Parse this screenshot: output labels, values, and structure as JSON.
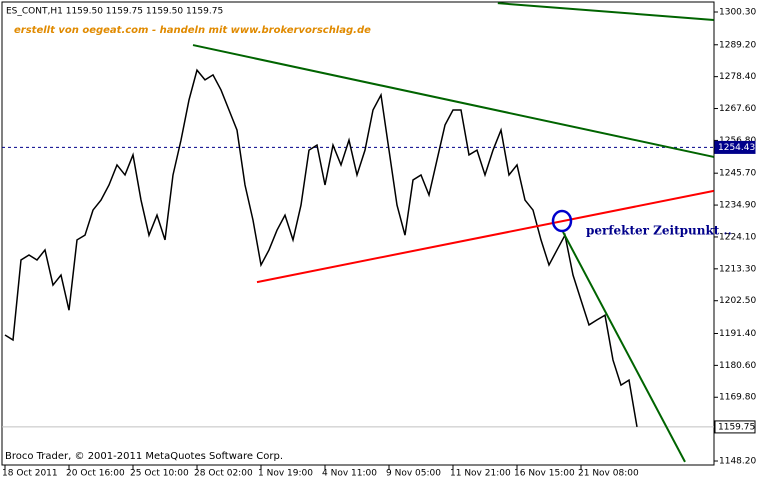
{
  "chart_data": {
    "type": "line",
    "header": "ES_CONT,H1  1159.50 1159.75 1159.50 1159.75",
    "subtitle": "erstellt von oegeat.com - handeln mit www.brokervorschlag.de",
    "annotation": "perfekter Zeitpunkt ..",
    "footer": "Broco Trader, © 2001-2011 MetaQuotes Software Corp.",
    "categories": [
      "18 Oct 2011",
      null,
      null,
      null,
      null,
      null,
      null,
      null,
      "20 Oct 16:00",
      null,
      null,
      null,
      null,
      null,
      null,
      null,
      "25 Oct 10:00",
      null,
      null,
      null,
      null,
      null,
      null,
      null,
      "28 Oct 02:00",
      null,
      null,
      null,
      null,
      null,
      null,
      null,
      "1 Nov 19:00",
      null,
      null,
      null,
      null,
      null,
      null,
      null,
      "4 Nov 11:00",
      null,
      null,
      null,
      null,
      null,
      null,
      null,
      "9 Nov 05:00",
      null,
      null,
      null,
      null,
      null,
      null,
      null,
      "11 Nov 21:00",
      null,
      null,
      null,
      null,
      null,
      null,
      null,
      "16 Nov 15:00",
      null,
      null,
      null,
      null,
      null,
      null,
      null,
      "21 Nov 08:00",
      null,
      null,
      null,
      null,
      null,
      null,
      null
    ],
    "series": [
      {
        "name": "ES_CONT",
        "color": "#000000",
        "values": [
          1190.9,
          1189.2,
          1216.3,
          1218.0,
          1216.3,
          1219.7,
          1207.8,
          1211.2,
          1199.3,
          1223.1,
          1224.7,
          1233.2,
          1236.6,
          1241.7,
          1248.5,
          1245.1,
          1251.9,
          1236.6,
          1224.7,
          1231.5,
          1223.1,
          1245.1,
          1256.9,
          1270.5,
          1280.6,
          1277.3,
          1279.0,
          1273.9,
          1267.1,
          1260.3,
          1241.7,
          1229.8,
          1214.6,
          1219.7,
          1226.4,
          1231.5,
          1223.1,
          1234.9,
          1253.5,
          1255.2,
          1241.7,
          1255.2,
          1248.5,
          1256.9,
          1245.1,
          1253.5,
          1267.1,
          1272.2,
          1253.5,
          1234.9,
          1224.7,
          1243.4,
          1245.1,
          1238.3,
          1250.2,
          1262.0,
          1267.1,
          1267.1,
          1251.9,
          1253.5,
          1245.1,
          1253.5,
          1260.3,
          1245.1,
          1248.5,
          1236.6,
          1233.2,
          1223.1,
          1214.6,
          1219.7,
          1224.7,
          1211.2,
          1202.7,
          1194.3,
          1196.0,
          1197.6,
          1182.4,
          1173.9,
          1175.6,
          1159.75
        ]
      }
    ],
    "ylim": [
      1146.85,
      1303.35
    ],
    "yticks": [
      {
        "value": 1300.3,
        "label": "1300.30"
      },
      {
        "value": 1289.2,
        "label": "1289.20"
      },
      {
        "value": 1278.4,
        "label": "1278.40"
      },
      {
        "value": 1267.6,
        "label": "1267.60"
      },
      {
        "value": 1256.8,
        "label": "1256.80"
      },
      {
        "value": 1245.7,
        "label": "1245.70"
      },
      {
        "value": 1234.9,
        "label": "1234.90"
      },
      {
        "value": 1224.1,
        "label": "1224.10"
      },
      {
        "value": 1213.3,
        "label": "1213.30"
      },
      {
        "value": 1202.5,
        "label": "1202.50"
      },
      {
        "value": 1191.4,
        "label": "1191.40"
      },
      {
        "value": 1180.6,
        "label": "1180.60"
      },
      {
        "value": 1169.8,
        "label": "1169.80"
      },
      {
        "value": 1148.2,
        "label": "1148.20"
      }
    ],
    "levels": [
      {
        "value": 1254.43,
        "label": "1254.43",
        "color": "#00008b"
      },
      {
        "value": 1159.75,
        "label": "1159.75",
        "color": "#c0c0c0"
      }
    ],
    "trendlines": [
      {
        "color": "#ff0000",
        "x": [
          31.5,
          88.6
        ],
        "y": [
          1208.8,
          1239.7
        ]
      },
      {
        "color": "#006400",
        "x": [
          23.5,
          88.6
        ],
        "y": [
          1289.1,
          1251.2
        ]
      },
      {
        "color": "#006400",
        "x": [
          61.6,
          88.6
        ],
        "y": [
          1303.3,
          1297.6
        ]
      },
      {
        "color": "#006400",
        "x": [
          69.75,
          85
        ],
        "y": [
          1225.8,
          1147.9
        ]
      }
    ]
  }
}
